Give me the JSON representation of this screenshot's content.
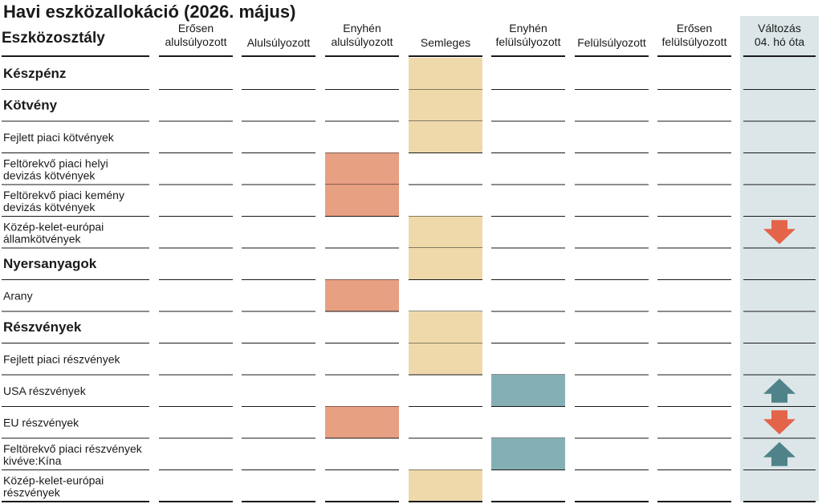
{
  "title": "Havi eszközallokáció (2026. május)",
  "colors": {
    "neutral": "#efd9aa",
    "underweight": "#e8a083",
    "overweight": "#84b0b5",
    "change_column_bg": "#dce6e8",
    "arrow_up": "#4f8389",
    "arrow_down": "#e4644a",
    "rule": "#1a1a1a"
  },
  "chart_data": {
    "type": "table",
    "row_header": "Eszközosztály",
    "columns": [
      [
        "Erősen",
        "alulsúlyozott"
      ],
      [
        "Alulsúlyozott"
      ],
      [
        "Enyhén",
        "alulsúlyozott"
      ],
      [
        "Semleges"
      ],
      [
        "Enyhén",
        "felülsúlyozott"
      ],
      [
        "Felülsúlyozott"
      ],
      [
        "Erősen",
        "felülsúlyozott"
      ]
    ],
    "change_header": [
      "Változás",
      "04. hó óta"
    ],
    "rows": [
      {
        "label": [
          "Készpénz"
        ],
        "bold": true,
        "position": 3,
        "change": ""
      },
      {
        "label": [
          "Kötvény"
        ],
        "bold": true,
        "position": 3,
        "change": ""
      },
      {
        "label": [
          "Fejlett piaci kötvények"
        ],
        "bold": false,
        "position": 3,
        "change": ""
      },
      {
        "label": [
          "Feltörekvő piaci helyi",
          "devizás kötvények"
        ],
        "bold": false,
        "position": 2,
        "change": ""
      },
      {
        "label": [
          "Feltörekvő piaci kemény",
          "devizás kötvények"
        ],
        "bold": false,
        "position": 2,
        "change": ""
      },
      {
        "label": [
          "Közép-kelet-európai",
          "államkötvények"
        ],
        "bold": false,
        "position": 3,
        "change": "down"
      },
      {
        "label": [
          "Nyersanyagok"
        ],
        "bold": true,
        "position": 3,
        "change": ""
      },
      {
        "label": [
          "Arany"
        ],
        "bold": false,
        "position": 2,
        "change": ""
      },
      {
        "label": [
          "Részvények"
        ],
        "bold": true,
        "position": 3,
        "change": ""
      },
      {
        "label": [
          "Fejlett piaci részvények"
        ],
        "bold": false,
        "position": 3,
        "change": ""
      },
      {
        "label": [
          "USA részvények"
        ],
        "bold": false,
        "position": 4,
        "change": "up"
      },
      {
        "label": [
          "EU részvények"
        ],
        "bold": false,
        "position": 2,
        "change": "down"
      },
      {
        "label": [
          "Feltörekvő piaci részvények",
          "kivéve:Kína"
        ],
        "bold": false,
        "position": 4,
        "change": "up"
      },
      {
        "label": [
          "Közép-kelet-európai",
          "részvények"
        ],
        "bold": false,
        "position": 3,
        "change": ""
      }
    ]
  }
}
